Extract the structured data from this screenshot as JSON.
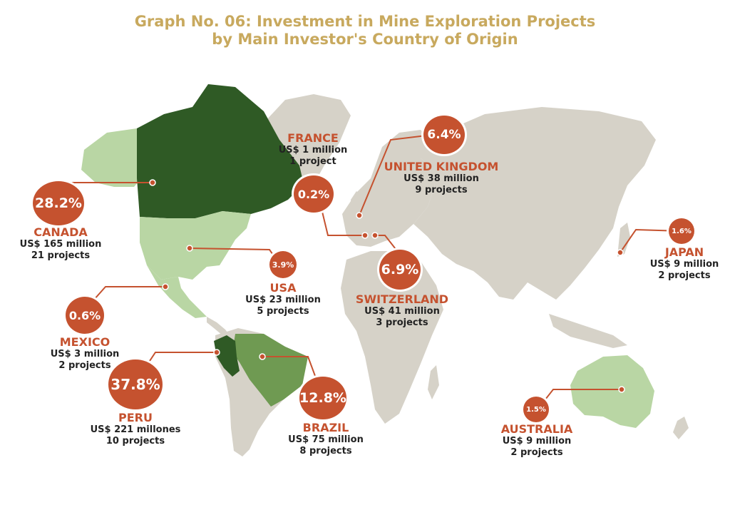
{
  "title": {
    "line1": "Graph No. 06: Investment in Mine Exploration Projects",
    "line2": "by Main Investor's Country of Origin"
  },
  "colors": {
    "title": "#c8a95e",
    "accent": "#c5522f",
    "land": "#d6d2c8",
    "highlight_dark": "#2f5a25",
    "highlight_mid": "#6f9a52",
    "highlight_light": "#b9d6a4"
  },
  "countries": {
    "canada": {
      "name": "CANADA",
      "pct": "28.2%",
      "amount": "US$ 165 million",
      "projects": "21 projects"
    },
    "usa": {
      "name": "USA",
      "pct": "3.9%",
      "amount": "US$ 23 million",
      "projects": "5 projects"
    },
    "mexico": {
      "name": "MEXICO",
      "pct": "0.6%",
      "amount": "US$ 3 million",
      "projects": "2 projects"
    },
    "peru": {
      "name": "PERU",
      "pct": "37.8%",
      "amount": "US$ 221 millones",
      "projects": "10 projects"
    },
    "brazil": {
      "name": "BRAZIL",
      "pct": "12.8%",
      "amount": "US$ 75 million",
      "projects": "8 projects"
    },
    "france": {
      "name": "FRANCE",
      "pct": "0.2%",
      "amount": "US$ 1 million",
      "projects": "1 project"
    },
    "uk": {
      "name": "UNITED KINGDOM",
      "pct": "6.4%",
      "amount": "US$ 38 million",
      "projects": "9 projects"
    },
    "switzerland": {
      "name": "SWITZERLAND",
      "pct": "6.9%",
      "amount": "US$ 41 million",
      "projects": "3 projects"
    },
    "japan": {
      "name": "JAPAN",
      "pct": "1.6%",
      "amount": "US$ 9 million",
      "projects": "2 projects"
    },
    "australia": {
      "name": "AUSTRALIA",
      "pct": "1.5%",
      "amount": "US$ 9 million",
      "projects": "2 projects"
    }
  }
}
